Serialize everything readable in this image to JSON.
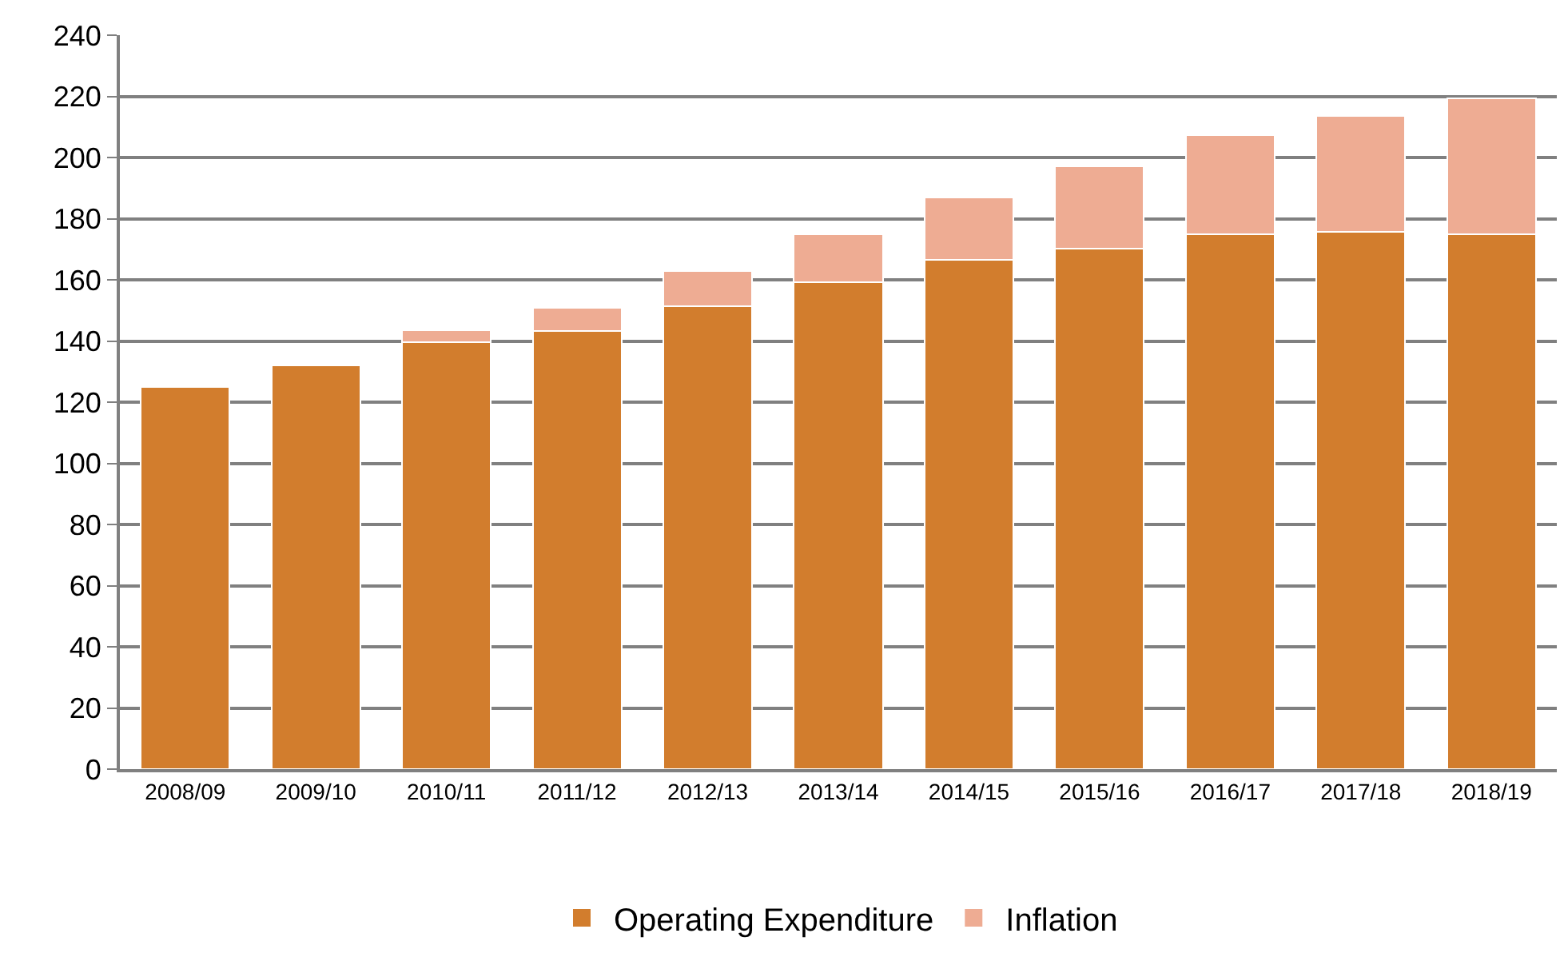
{
  "chart_data": {
    "type": "bar",
    "stacked": true,
    "categories": [
      "2008/09",
      "2009/10",
      "2010/11",
      "2011/12",
      "2012/13",
      "2013/14",
      "2014/15",
      "2015/16",
      "2016/17",
      "2017/18",
      "2018/19"
    ],
    "series": [
      {
        "name": "Operating Expenditure",
        "color": "#d27d2d",
        "values": [
          125,
          132,
          139.7,
          143.3,
          151.4,
          159.2,
          166.5,
          170.1,
          174.8,
          175.8,
          174.8
        ]
      },
      {
        "name": "Inflation",
        "color": "#eeac93",
        "values": [
          null,
          null,
          3.8,
          7.6,
          11.5,
          15.8,
          20.5,
          27,
          32.6,
          37.9,
          44.6
        ]
      }
    ],
    "ylim": [
      0,
      240
    ],
    "yticks": [
      0,
      20,
      40,
      60,
      80,
      100,
      120,
      140,
      160,
      180,
      200,
      220,
      240
    ],
    "grid": "y",
    "legend": "bottom"
  }
}
